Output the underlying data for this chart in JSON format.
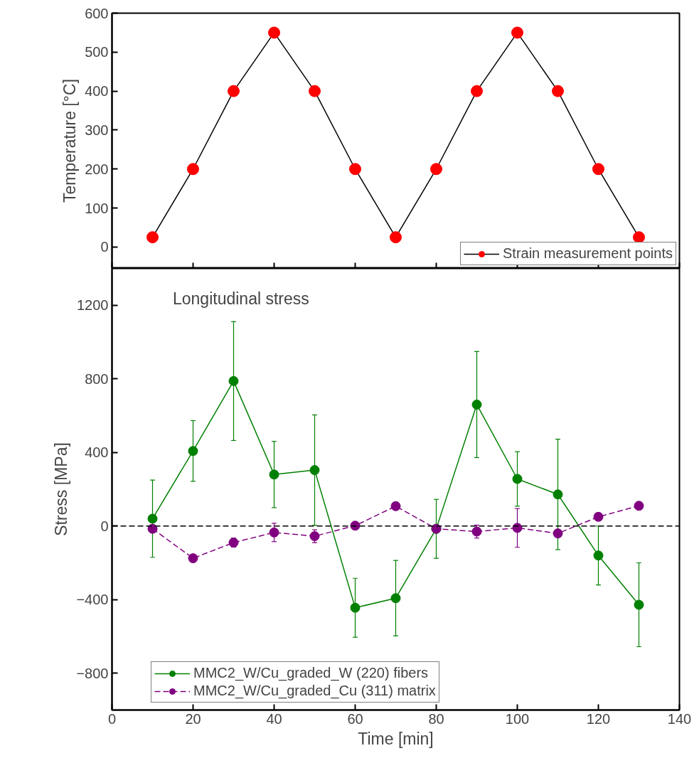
{
  "chart_data": [
    {
      "type": "line",
      "ylabel": "Temperature [°C]",
      "x": [
        10,
        20,
        30,
        40,
        50,
        60,
        70,
        80,
        90,
        100,
        110,
        120,
        130
      ],
      "xlim": [
        0,
        140
      ],
      "xticks": [
        0,
        20,
        40,
        60,
        80,
        100,
        120,
        140
      ],
      "ylim": [
        -55,
        600
      ],
      "yticks": [
        0,
        100,
        200,
        300,
        400,
        500,
        600
      ],
      "tick_labels": "y",
      "grid": false,
      "legend": "bottom right",
      "marker": "circle",
      "line_style": "solid",
      "series": [
        {
          "name": "Strain measurement points",
          "color": "#ff0000",
          "values": [
            25,
            200,
            400,
            550,
            400,
            200,
            25,
            200,
            400,
            550,
            400,
            200,
            25
          ]
        }
      ]
    },
    {
      "type": "line",
      "xlabel": "Time [min]",
      "ylabel": "Stress [MPa]",
      "annotations": [
        "Longitudinal  stress"
      ],
      "x": [
        10,
        20,
        30,
        40,
        50,
        60,
        70,
        80,
        90,
        100,
        110,
        120,
        130
      ],
      "xlim": [
        0,
        140
      ],
      "xticks": [
        0,
        20,
        40,
        60,
        80,
        100,
        120,
        140
      ],
      "ylim": [
        -1000,
        1400
      ],
      "yticks": [
        -800,
        -400,
        0,
        400,
        800,
        1200
      ],
      "grid": false,
      "legend": "bottom",
      "marker": "circle",
      "ref_lines": [
        {
          "axis": "y",
          "value": 0,
          "color": "#000000",
          "line_style": "dashed"
        }
      ],
      "series": [
        {
          "name": "MMC2_W/Cu_graded_W (220) fibers",
          "color": "#008000",
          "line_style": "solid",
          "values": [
            40,
            408,
            788,
            280,
            304,
            -444,
            -392,
            -15,
            660,
            256,
            172,
            -160,
            -428
          ],
          "errors": [
            210,
            165,
            323,
            180,
            300,
            160,
            205,
            160,
            288,
            148,
            300,
            160,
            228
          ]
        },
        {
          "name": "MMC2_W/Cu_graded_Cu (311) matrix",
          "color": "#800080",
          "line_style": "dashed",
          "values": [
            -15,
            -175,
            -90,
            -35,
            -55,
            2,
            108,
            -15,
            -30,
            -10,
            -40,
            50,
            110
          ],
          "errors": [
            null,
            null,
            25,
            50,
            35,
            null,
            null,
            null,
            35,
            105,
            null,
            null,
            null
          ]
        }
      ]
    }
  ]
}
